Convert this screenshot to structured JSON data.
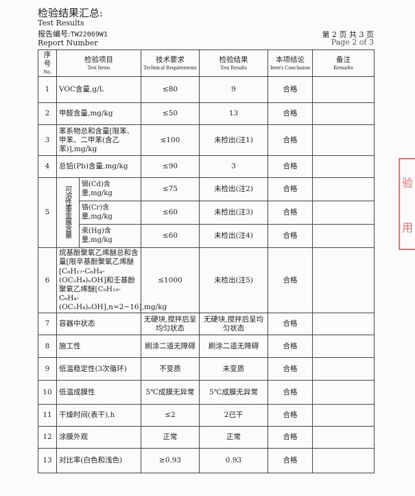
{
  "header": {
    "title_cn": "检验结果汇总:",
    "title_en": "Test Results",
    "report_no_label": "报告编号:",
    "report_no": "TW22069W1",
    "report_no_en": "Report Number",
    "page_cn": "第 2 页 共 3 页",
    "page_en": "Page 2 of 3"
  },
  "columns": [
    {
      "cn": "序号",
      "en": "No."
    },
    {
      "cn": "检验项目",
      "en": "Test Items"
    },
    {
      "cn": "技术要求",
      "en": "Technical Requirements"
    },
    {
      "cn": "检验结果",
      "en": "Test Results"
    },
    {
      "cn": "本项结论",
      "en": "Item's Conclusion"
    },
    {
      "cn": "备注",
      "en": "Remarks"
    }
  ],
  "rows": [
    {
      "no": "1",
      "item": "VOC含量,g/L",
      "req": "≤80",
      "result": "9",
      "conclusion": "合格"
    },
    {
      "no": "2",
      "item": "甲醛含量,mg/kg",
      "req": "≤50",
      "result": "13",
      "conclusion": "合格"
    },
    {
      "no": "3",
      "item": "苯系物总和含量[限苯、甲苯、二甲苯(含乙苯)],mg/kg",
      "req": "≤100",
      "result": "未检出(注1)",
      "conclusion": "合格"
    },
    {
      "no": "4",
      "item": "总铅(Pb)含量,mg/kg",
      "req": "≤90",
      "result": "3",
      "conclusion": "合格"
    },
    {
      "no": "6",
      "item": "烷基酚聚氧乙烯醚总和含量[限辛基酚聚氧乙烯醚[C₈H₁₇-C₆H₄-(OC₂H₄)ₙOH]和壬基酚聚氧乙烯醚[C₉H₁₉-C₆H₄-(OC₂H₄)ₙOH],n=2~16],mg/kg",
      "req": "≤1000",
      "result": "未检出(注5)",
      "conclusion": "合格"
    },
    {
      "no": "7",
      "item": "容器中状态",
      "req": "无硬块,搅拌后呈均匀状态",
      "result": "无硬块,搅拌后呈均匀状态",
      "conclusion": "合格"
    },
    {
      "no": "8",
      "item": "施工性",
      "req": "刷涂二道无障碍",
      "result": "刷涂二道无障碍",
      "conclusion": "合格"
    },
    {
      "no": "9",
      "item": "低温稳定性(3次循环)",
      "req": "不变质",
      "result": "未变质",
      "conclusion": "合格"
    },
    {
      "no": "10",
      "item": "低温成膜性",
      "req": "5℃成膜无异常",
      "result": "5℃成膜无异常",
      "conclusion": "合格"
    },
    {
      "no": "11",
      "item": "干燥时间(表干),h",
      "req": "≤2",
      "result": "2已干",
      "conclusion": "合格"
    },
    {
      "no": "12",
      "item": "涂膜外观",
      "req": "正常",
      "result": "正常",
      "conclusion": "合格"
    },
    {
      "no": "13",
      "item": "对比率(白色和浅色)",
      "req": "≥0.93",
      "result": "0.93",
      "conclusion": "合格"
    }
  ],
  "row5": {
    "no": "5",
    "group": "可溶性重金属含量",
    "subs": [
      {
        "item": "镉(Cd)含量,mg/kg",
        "req": "≤75",
        "result": "未检出(注2)",
        "conclusion": "合格"
      },
      {
        "item": "铬(Cr)含量,mg/kg",
        "req": "≤60",
        "result": "未检出(注3)",
        "conclusion": "合格"
      },
      {
        "item": "汞(Hg)含量,mg/kg",
        "req": "≤60",
        "result": "未检出(注4)",
        "conclusion": "合格"
      }
    ]
  },
  "stamp": {
    "chars": [
      "验",
      "用"
    ],
    "color": "#dc3c3c"
  }
}
